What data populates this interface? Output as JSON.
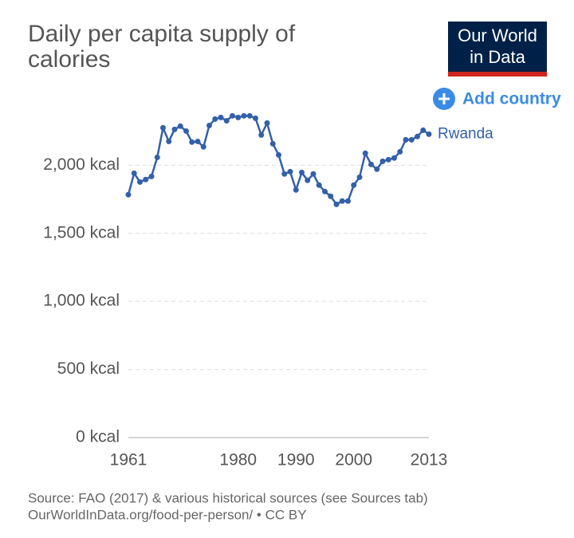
{
  "chart_data": {
    "type": "line",
    "title": [
      "Daily per capita supply of",
      "calories"
    ],
    "x": [
      1961,
      1962,
      1963,
      1964,
      1965,
      1966,
      1967,
      1968,
      1969,
      1970,
      1971,
      1972,
      1973,
      1974,
      1975,
      1976,
      1977,
      1978,
      1979,
      1980,
      1981,
      1982,
      1983,
      1984,
      1985,
      1986,
      1987,
      1988,
      1989,
      1990,
      1991,
      1992,
      1993,
      1994,
      1995,
      1996,
      1997,
      1998,
      1999,
      2000,
      2001,
      2002,
      2003,
      2004,
      2005,
      2006,
      2007,
      2008,
      2009,
      2010,
      2011,
      2012,
      2013
    ],
    "series": [
      {
        "name": "Rwanda",
        "color": "#3360a9",
        "values": [
          1784,
          1941,
          1877,
          1895,
          1918,
          2058,
          2275,
          2175,
          2263,
          2287,
          2251,
          2170,
          2175,
          2135,
          2292,
          2339,
          2351,
          2327,
          2363,
          2351,
          2363,
          2363,
          2345,
          2222,
          2310,
          2158,
          2076,
          1936,
          1953,
          1819,
          1947,
          1889,
          1936,
          1854,
          1807,
          1772,
          1713,
          1737,
          1737,
          1854,
          1912,
          2088,
          2006,
          1971,
          2029,
          2041,
          2053,
          2099,
          2187,
          2187,
          2211,
          2257,
          2228
        ]
      }
    ],
    "xlim": [
      1961,
      2013
    ],
    "xticks": [
      1961,
      1980,
      1990,
      2000,
      2013
    ],
    "ylim": [
      0,
      2400
    ],
    "yticks": [
      {
        "value": 0,
        "label": "0 kcal"
      },
      {
        "value": 500,
        "label": "500 kcal"
      },
      {
        "value": 1000,
        "label": "1,000 kcal"
      },
      {
        "value": 1500,
        "label": "1,500 kcal"
      },
      {
        "value": 2000,
        "label": "2,000 kcal"
      }
    ],
    "grid": true,
    "source": [
      "Source: FAO (2017) & various historical sources (see Sources tab)",
      "OurWorldInData.org/food-per-person/ • CC BY"
    ]
  },
  "logo": [
    "Our World",
    "in Data"
  ],
  "add_country": "Add country"
}
